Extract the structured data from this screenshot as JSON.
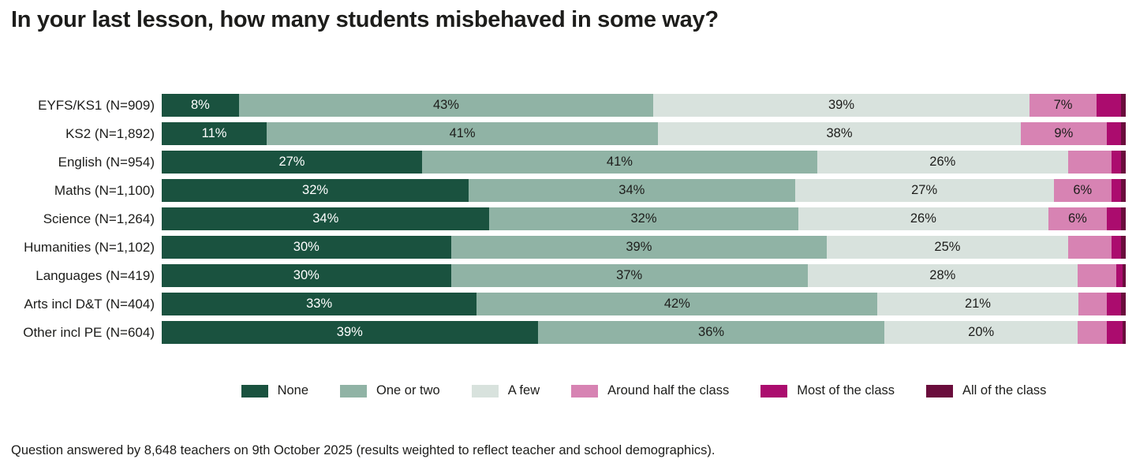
{
  "title": "In your last lesson, how many students misbehaved in some way?",
  "footnote": "Question answered by 8,648 teachers on 9th October 2025 (results weighted to reflect teacher and school demographics).",
  "chart_data": {
    "type": "bar",
    "orientation": "horizontal_stacked",
    "title": "In your last lesson, how many students misbehaved in some way?",
    "xlabel": "",
    "ylabel": "",
    "xlim": [
      0,
      100
    ],
    "unit": "%",
    "grid": false,
    "legend_position": "bottom",
    "label_rule": "segment percentage label shown only when value >= 6",
    "categories": [
      "EYFS/KS1 (N=909)",
      "KS2 (N=1,892)",
      "English (N=954)",
      "Maths (N=1,100)",
      "Science (N=1,264)",
      "Humanities (N=1,102)",
      "Languages (N=419)",
      "Arts incl D&T (N=404)",
      "Other incl PE (N=604)"
    ],
    "series": [
      {
        "name": "None",
        "color": "#1a523f",
        "text_color": "#ffffff",
        "values": [
          8,
          11,
          27,
          32,
          34,
          30,
          30,
          33,
          39
        ]
      },
      {
        "name": "One or two",
        "color": "#90b3a5",
        "text_color": "#1d1d1b",
        "values": [
          43,
          41,
          41,
          34,
          32,
          39,
          37,
          42,
          36
        ]
      },
      {
        "name": "A few",
        "color": "#d8e2dd",
        "text_color": "#1d1d1b",
        "values": [
          39,
          38,
          26,
          27,
          26,
          25,
          28,
          21,
          20
        ]
      },
      {
        "name": "Around half the class",
        "color": "#d783b3",
        "text_color": "#1d1d1b",
        "values": [
          7,
          9,
          4.5,
          6,
          6,
          4.5,
          4,
          3,
          3
        ]
      },
      {
        "name": "Most of the class",
        "color": "#ab0c6e",
        "text_color": "#ffffff",
        "values": [
          2.5,
          1.5,
          1,
          1,
          1.5,
          1,
          0.7,
          1.5,
          1.7
        ]
      },
      {
        "name": "All of the class",
        "color": "#6a0d3c",
        "text_color": "#ffffff",
        "values": [
          0.5,
          0.5,
          0.5,
          0.5,
          0.5,
          0.5,
          0.3,
          0.5,
          0.3
        ]
      }
    ]
  }
}
